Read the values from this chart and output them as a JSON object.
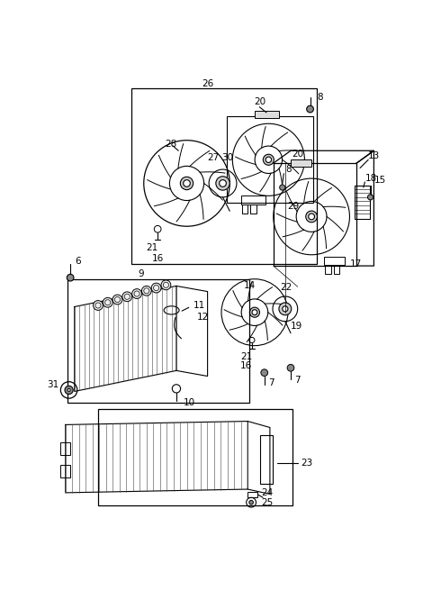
{
  "bg_color": "#ffffff",
  "line_color": "#000000",
  "fs": 7.5,
  "lw": 0.8
}
